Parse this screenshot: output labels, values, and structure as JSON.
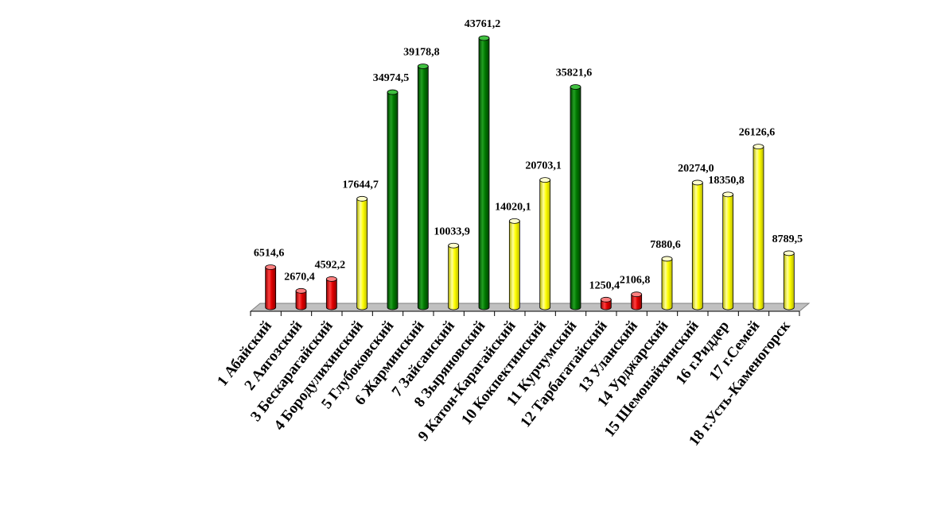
{
  "chart_data": {
    "type": "bar",
    "title": "",
    "xlabel": "",
    "ylabel": "",
    "ylim": [
      0,
      45000
    ],
    "grid": false,
    "legend": "none",
    "categories": [
      "1 Абайский",
      "2 Аягозский",
      "3 Бескарагайский",
      "4 Бородулихинский",
      "5 Глубоковский",
      "6 Жарминский",
      "7 Зайсанский",
      "8 Зыряновский",
      "9 Катон-Карагайский",
      "10 Кокпектинский",
      "11 Курчумский",
      "12 Тарбагатайский",
      "13 Уланский",
      "14 Урджарский",
      "15 Шемонайхинский",
      "16 г.Риддер",
      "17 г.Семей",
      "18 г.Усть-Каменогорск"
    ],
    "values": [
      6514.6,
      2670.4,
      4592.2,
      17644.7,
      34974.5,
      39178.8,
      10033.9,
      43761.2,
      14020.1,
      20703.1,
      35821.6,
      1250.4,
      2106.8,
      7880.6,
      20274.0,
      18350.8,
      26126.6,
      8789.5
    ],
    "value_labels": [
      "6514,6",
      "2670,4",
      "4592,2",
      "17644,7",
      "34974,5",
      "39178,8",
      "10033,9",
      "43761,2",
      "14020,1",
      "20703,1",
      "35821,6",
      "1250,4",
      "2106,8",
      "7880,6",
      "20274,0",
      "18350,8",
      "26126,6",
      "8789,5"
    ],
    "bar_colors": [
      "red",
      "red",
      "red",
      "yellow",
      "green",
      "green",
      "yellow",
      "green",
      "yellow",
      "yellow",
      "green",
      "red",
      "red",
      "yellow",
      "yellow",
      "yellow",
      "yellow",
      "yellow"
    ],
    "colors": {
      "red": "#e00000",
      "yellow": "#ffff00",
      "green": "#007800",
      "floor": "#c0c0c0"
    }
  }
}
